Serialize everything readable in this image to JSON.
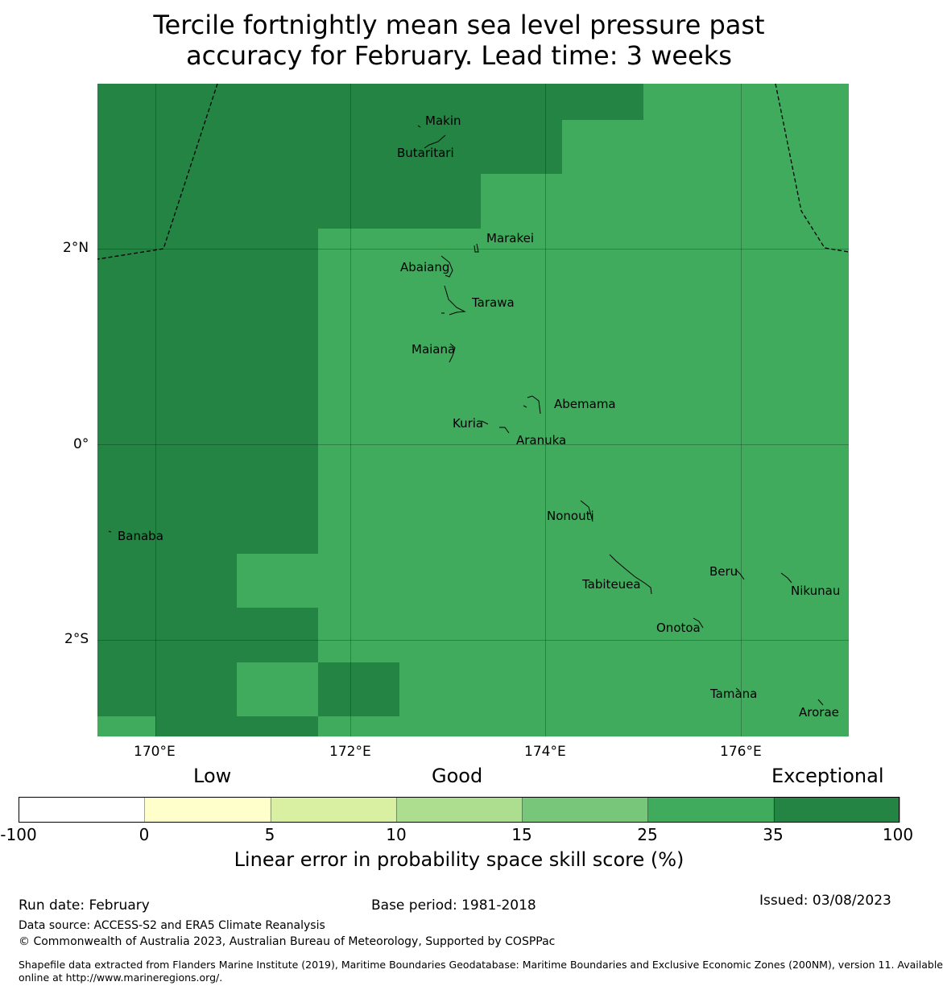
{
  "title": {
    "line1": "Tercile fortnightly mean sea level pressure past",
    "line2": "accuracy for February. Lead time: 3 weeks"
  },
  "map": {
    "lon_labels": [
      "170°E",
      "172°E",
      "174°E",
      "176°E"
    ],
    "lat_labels": [
      "2°N",
      "0°",
      "2°S"
    ],
    "colors": {
      "exceptional": "#238443",
      "very_good": "#41ab5d",
      "boundary": "#000000"
    },
    "places": [
      "Makin",
      "Butaritari",
      "Marakei",
      "Abaiang",
      "Tarawa",
      "Maiana",
      "Abemama",
      "Kuria",
      "Aranuka",
      "Nonouti",
      "Banaba",
      "Tabiteuea",
      "Beru",
      "Nikunau",
      "Onotoa",
      "Tamana",
      "Arorae"
    ]
  },
  "colorbar": {
    "category_labels": [
      "Low",
      "Good",
      "Exceptional"
    ],
    "ticks": [
      "-100",
      "0",
      "5",
      "10",
      "15",
      "25",
      "35",
      "100"
    ],
    "colors": [
      "#ffffff",
      "#ffffcc",
      "#d9f0a3",
      "#addd8e",
      "#78c679",
      "#41ab5d",
      "#238443"
    ],
    "xlabel": "Linear error in probability space skill score (%)"
  },
  "footer": {
    "run_date": "Run date: February",
    "base_period": "Base period: 1981-2018",
    "issued": "Issued: 03/08/2023",
    "data_source": "Data source: ACCESS-S2 and ERA5 Climate Reanalysis",
    "copyright": "© Commonwealth of Australia 2023, Australian Bureau of Meteorology, Supported by COSPPac",
    "shapefile_line1": "Shapefile data extracted from Flanders Marine Institute (2019), Maritime Boundaries Geodatabase: Maritime Boundaries and Exclusive Economic Zones (200NM), version 11. Available",
    "shapefile_line2": "online at http://www.marineregions.org/."
  }
}
